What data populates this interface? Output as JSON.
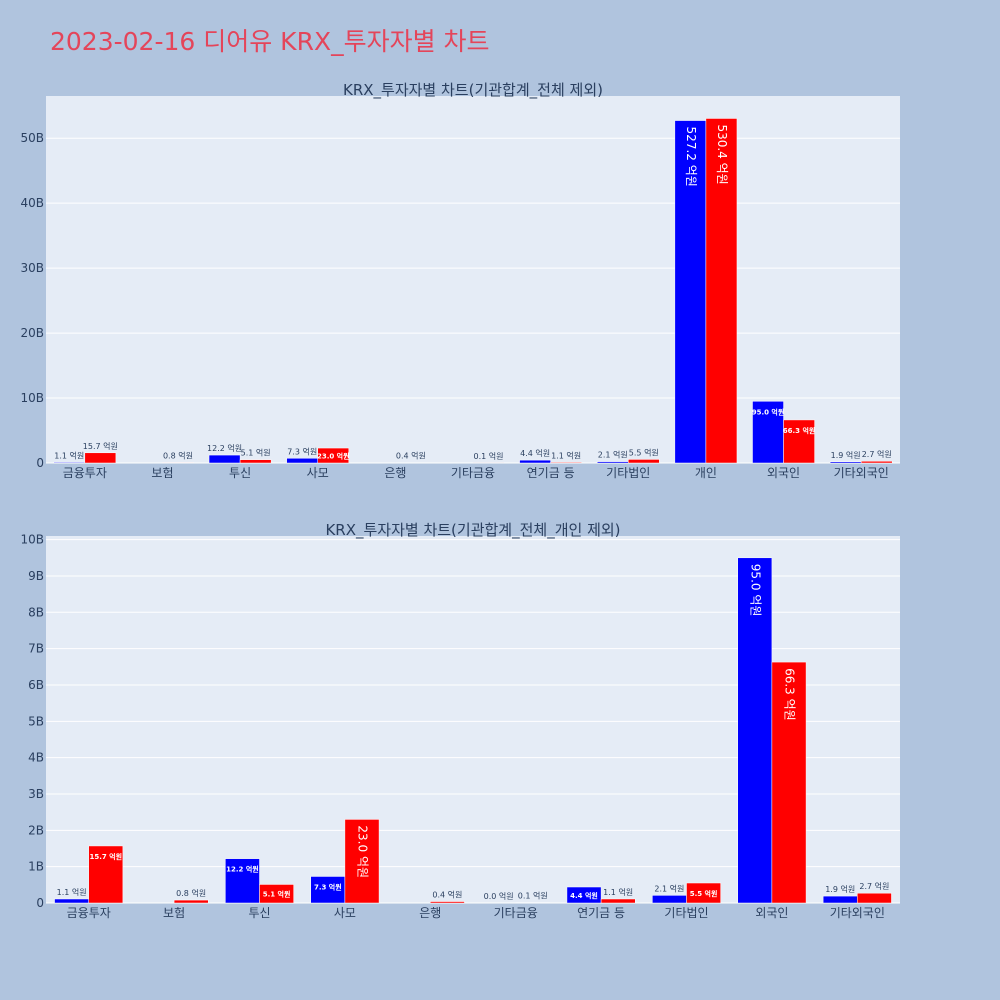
{
  "page": {
    "title": "2023-02-16 디어유 KRX_투자자별 차트"
  },
  "colors": {
    "background": "#b0c4de",
    "plot_bg": "#e5ecf6",
    "title": "#e4455a",
    "series_a": "#0000ff",
    "series_b": "#ff0000",
    "text": "#2a3f5f"
  },
  "chart_data": [
    {
      "type": "bar",
      "title": "KRX_투자자별 차트(기관합계_전체 제외)",
      "categories": [
        "금융투자",
        "보험",
        "투신",
        "사모",
        "은행",
        "기타금융",
        "연기금 등",
        "기타법인",
        "개인",
        "외국인",
        "기타외국인"
      ],
      "series": [
        {
          "values": [
            0.11,
            null,
            1.22,
            0.73,
            null,
            null,
            0.44,
            0.21,
            52.72,
            9.5,
            0.19
          ],
          "labels": [
            "1.1 억원",
            "",
            "12.2 억원",
            "7.3 억원",
            "",
            "",
            "4.4 억원",
            "2.1 억원",
            "527.2 억원",
            "95.0 억원",
            "1.9 억원"
          ]
        },
        {
          "values": [
            1.57,
            0.08,
            0.51,
            2.3,
            0.04,
            0.01,
            0.11,
            0.55,
            53.04,
            6.63,
            0.27
          ],
          "labels": [
            "15.7 억원",
            "0.8 억원",
            "5.1 억원",
            "23.0 억원",
            "0.4 억원",
            "0.1 억원",
            "1.1 억원",
            "5.5 억원",
            "530.4 억원",
            "66.3 억원",
            "2.7 억원"
          ]
        }
      ],
      "ylim": [
        0,
        56.5
      ],
      "yticks": [
        0,
        10,
        20,
        30,
        40,
        50
      ],
      "ytick_labels": [
        "0",
        "10B",
        "20B",
        "30B",
        "40B",
        "50B"
      ],
      "grid": true
    },
    {
      "type": "bar",
      "title": "KRX_투자자별 차트(기관합계_전체_개인 제외)",
      "categories": [
        "금융투자",
        "보험",
        "투신",
        "사모",
        "은행",
        "기타금융",
        "연기금 등",
        "기타법인",
        "외국인",
        "기타외국인"
      ],
      "series": [
        {
          "values": [
            0.11,
            null,
            1.22,
            0.73,
            null,
            0.0,
            0.44,
            0.21,
            9.5,
            0.19
          ],
          "labels": [
            "1.1 억원",
            "",
            "12.2 억원",
            "7.3 억원",
            "",
            "0.0 억원",
            "4.4 억원",
            "2.1 억원",
            "95.0 억원",
            "1.9 억원"
          ]
        },
        {
          "values": [
            1.57,
            0.08,
            0.51,
            2.3,
            0.04,
            0.01,
            0.11,
            0.55,
            6.63,
            0.27
          ],
          "labels": [
            "15.7 억원",
            "0.8 억원",
            "5.1 억원",
            "23.0 억원",
            "0.4 억원",
            "0.1 억원",
            "1.1 억원",
            "5.5 억원",
            "66.3 억원",
            "2.7 억원"
          ]
        }
      ],
      "ylim": [
        0,
        10.1
      ],
      "yticks": [
        0,
        1,
        2,
        3,
        4,
        5,
        6,
        7,
        8,
        9,
        10
      ],
      "ytick_labels": [
        "0",
        "1B",
        "2B",
        "3B",
        "4B",
        "5B",
        "6B",
        "7B",
        "8B",
        "9B",
        "10B"
      ],
      "grid": true
    }
  ]
}
